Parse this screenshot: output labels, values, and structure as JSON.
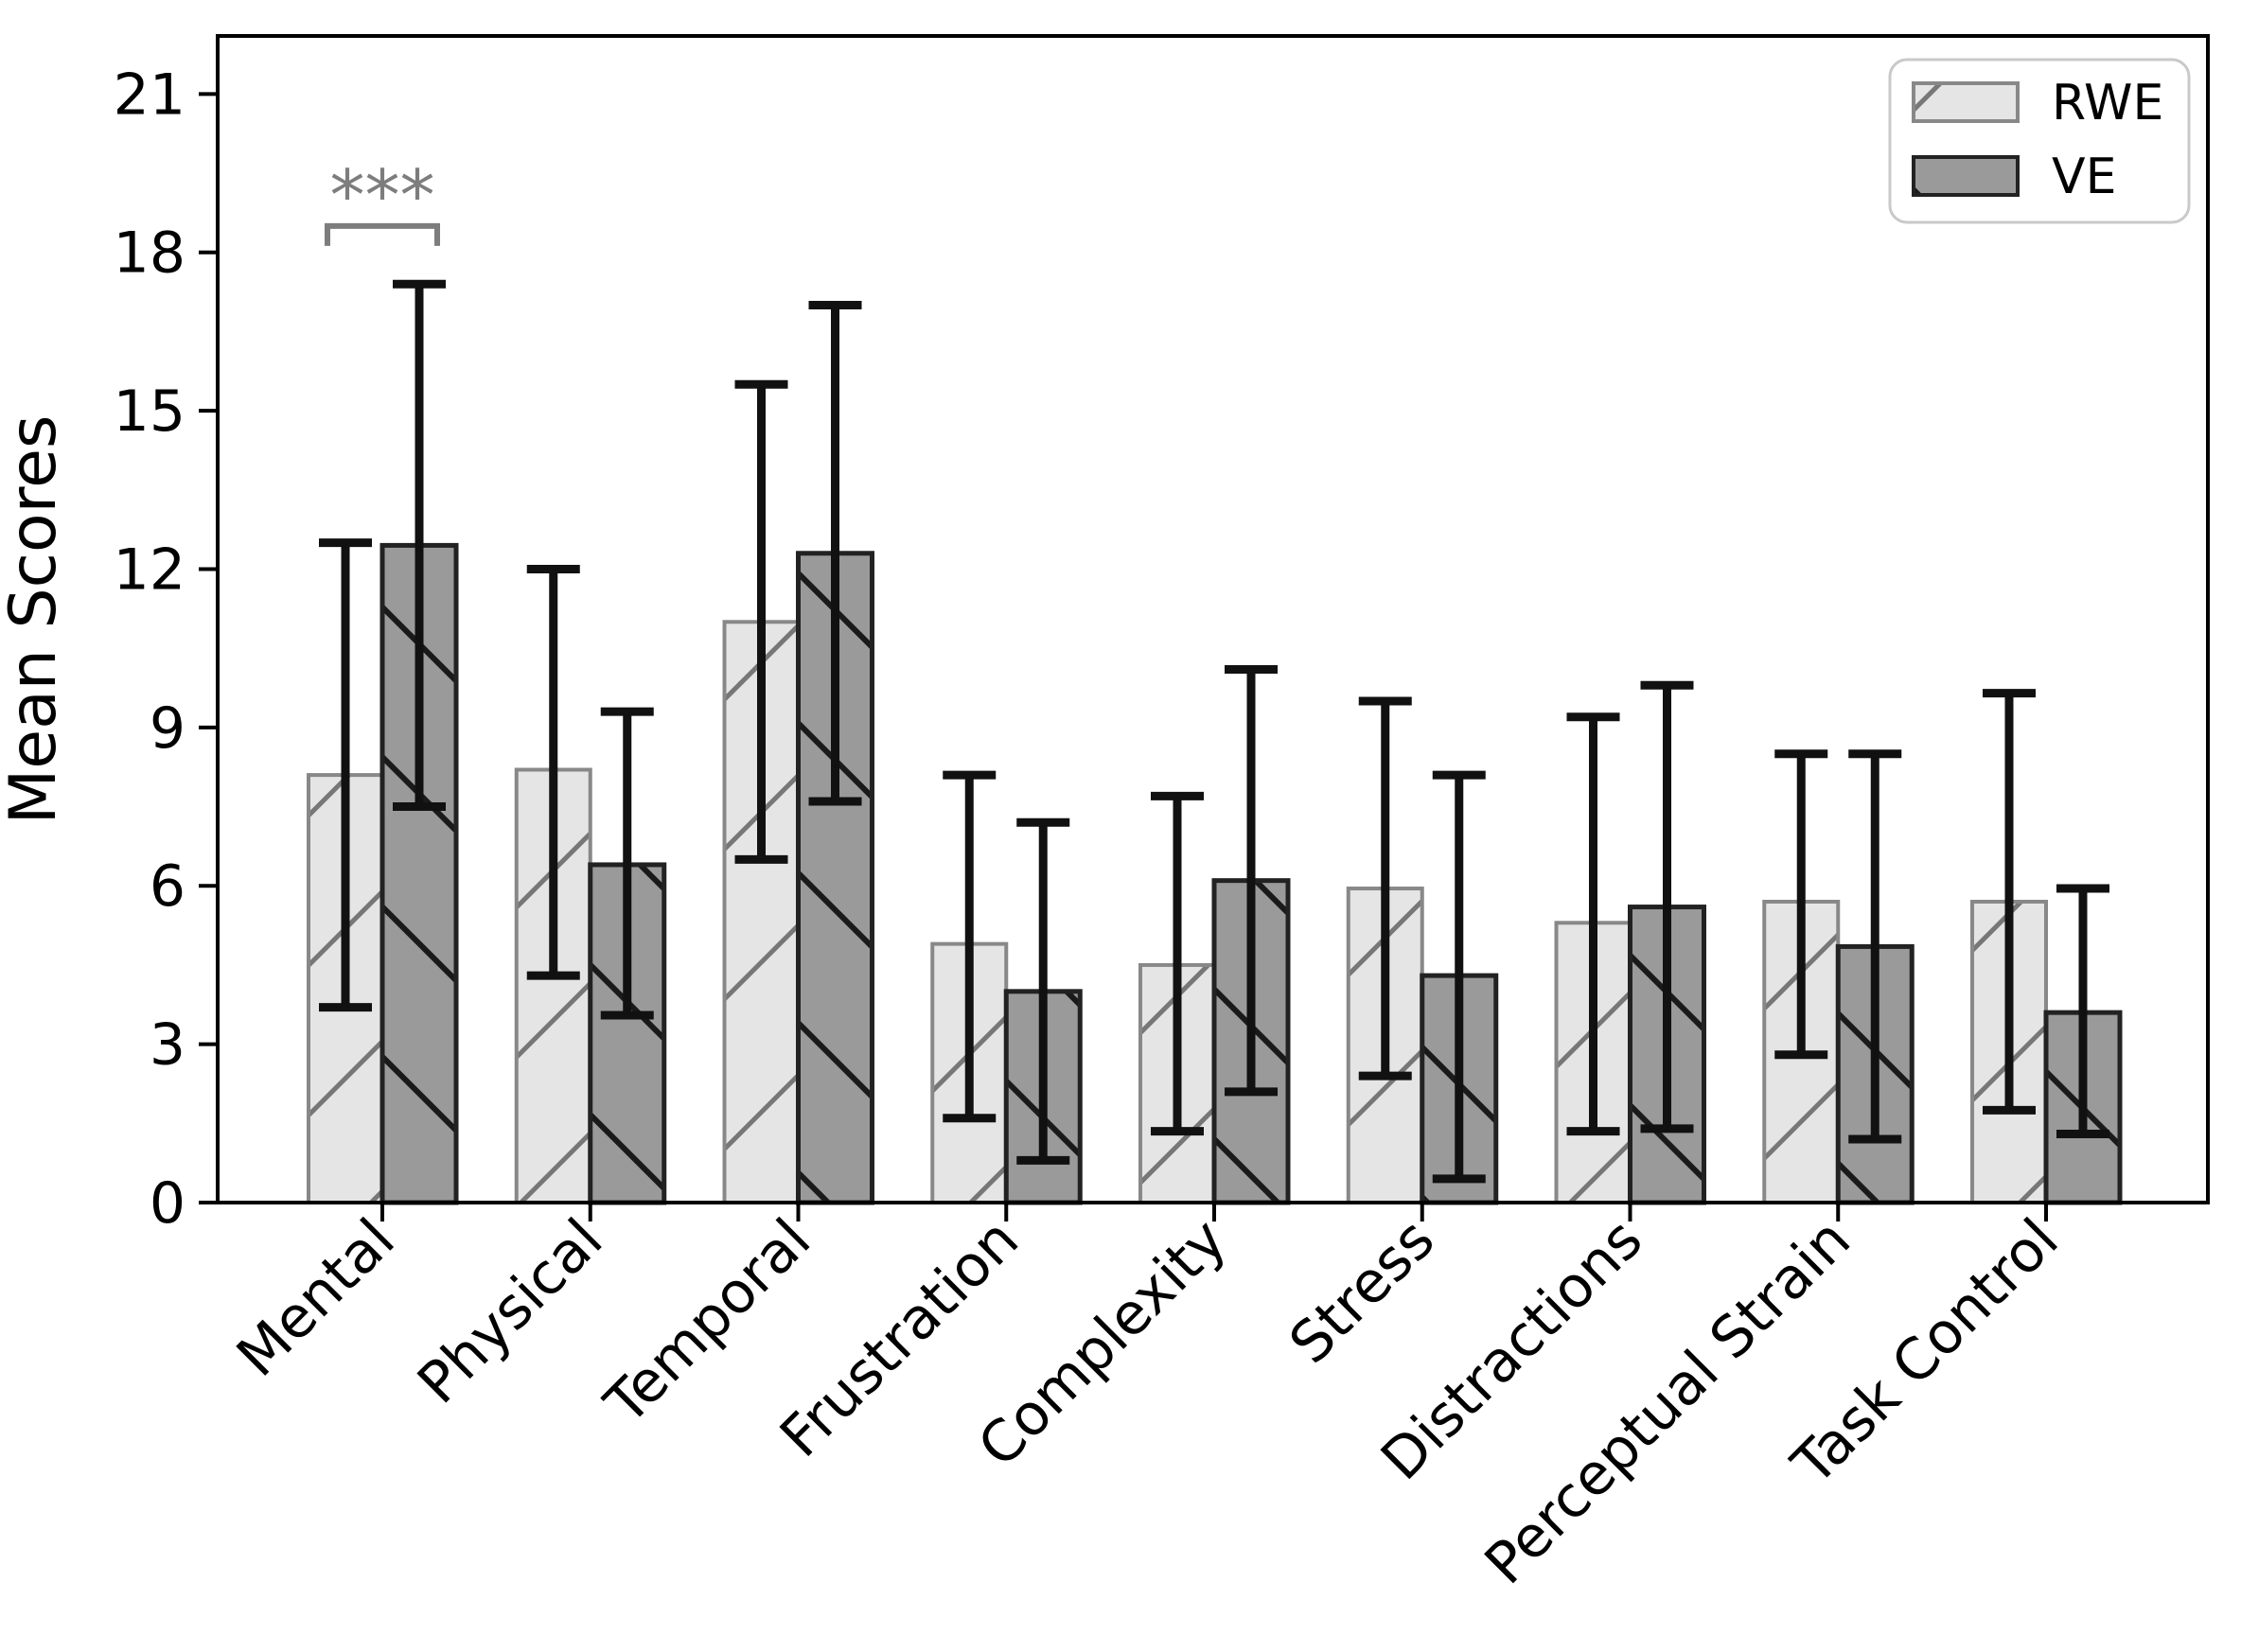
{
  "figure": {
    "ylabel": "Mean Scores",
    "significance_label": "***",
    "legend_items": [
      "RWE",
      "VE"
    ]
  },
  "chart_data": {
    "type": "bar",
    "title": "",
    "xlabel": "",
    "ylabel": "Mean Scores",
    "categories": [
      "Mental",
      "Physical",
      "Temporal",
      "Frustration",
      "Complexity",
      "Stress",
      "Distractions",
      "Perceptual Strain",
      "Task Control"
    ],
    "y_ticks": [
      0,
      3,
      6,
      9,
      12,
      15,
      18,
      21
    ],
    "ylim": [
      0,
      22.1
    ],
    "grid": false,
    "legend_position": "upper right",
    "series": [
      {
        "name": "RWE",
        "hatch": "/",
        "values": [
          8.1,
          8.2,
          11.0,
          4.9,
          4.5,
          5.95,
          5.3,
          5.7,
          5.7
        ],
        "err_low": [
          3.7,
          4.3,
          6.5,
          1.6,
          1.35,
          2.4,
          1.35,
          2.8,
          1.75
        ],
        "err_high": [
          12.5,
          12.0,
          15.5,
          8.1,
          7.7,
          9.5,
          9.2,
          8.5,
          9.65
        ]
      },
      {
        "name": "VE",
        "hatch": "\\",
        "values": [
          12.45,
          6.4,
          12.3,
          4.0,
          6.1,
          4.3,
          5.6,
          4.85,
          3.6
        ],
        "err_low": [
          7.5,
          3.55,
          7.6,
          0.8,
          2.1,
          0.45,
          1.4,
          1.2,
          1.3
        ],
        "err_high": [
          17.4,
          9.3,
          17.0,
          7.2,
          10.1,
          8.1,
          9.8,
          8.5,
          5.95
        ]
      }
    ],
    "annotations": [
      {
        "type": "significance",
        "label": "***",
        "category": "Mental",
        "between": [
          "RWE",
          "VE"
        ],
        "bracket_y": 18.5
      }
    ],
    "colors": {
      "rwe_fill": "#e5e5e5",
      "rwe_edge": "#888888",
      "rwe_hatch": "#777777",
      "ve_fill": "#9a9a9a",
      "ve_edge": "#222222",
      "ve_hatch": "#1a1a1a",
      "errorbar": "#111111",
      "axis": "#000000",
      "text": "#111111",
      "significance": "#7d7d7d",
      "legend_border": "#c9c9c9"
    }
  }
}
